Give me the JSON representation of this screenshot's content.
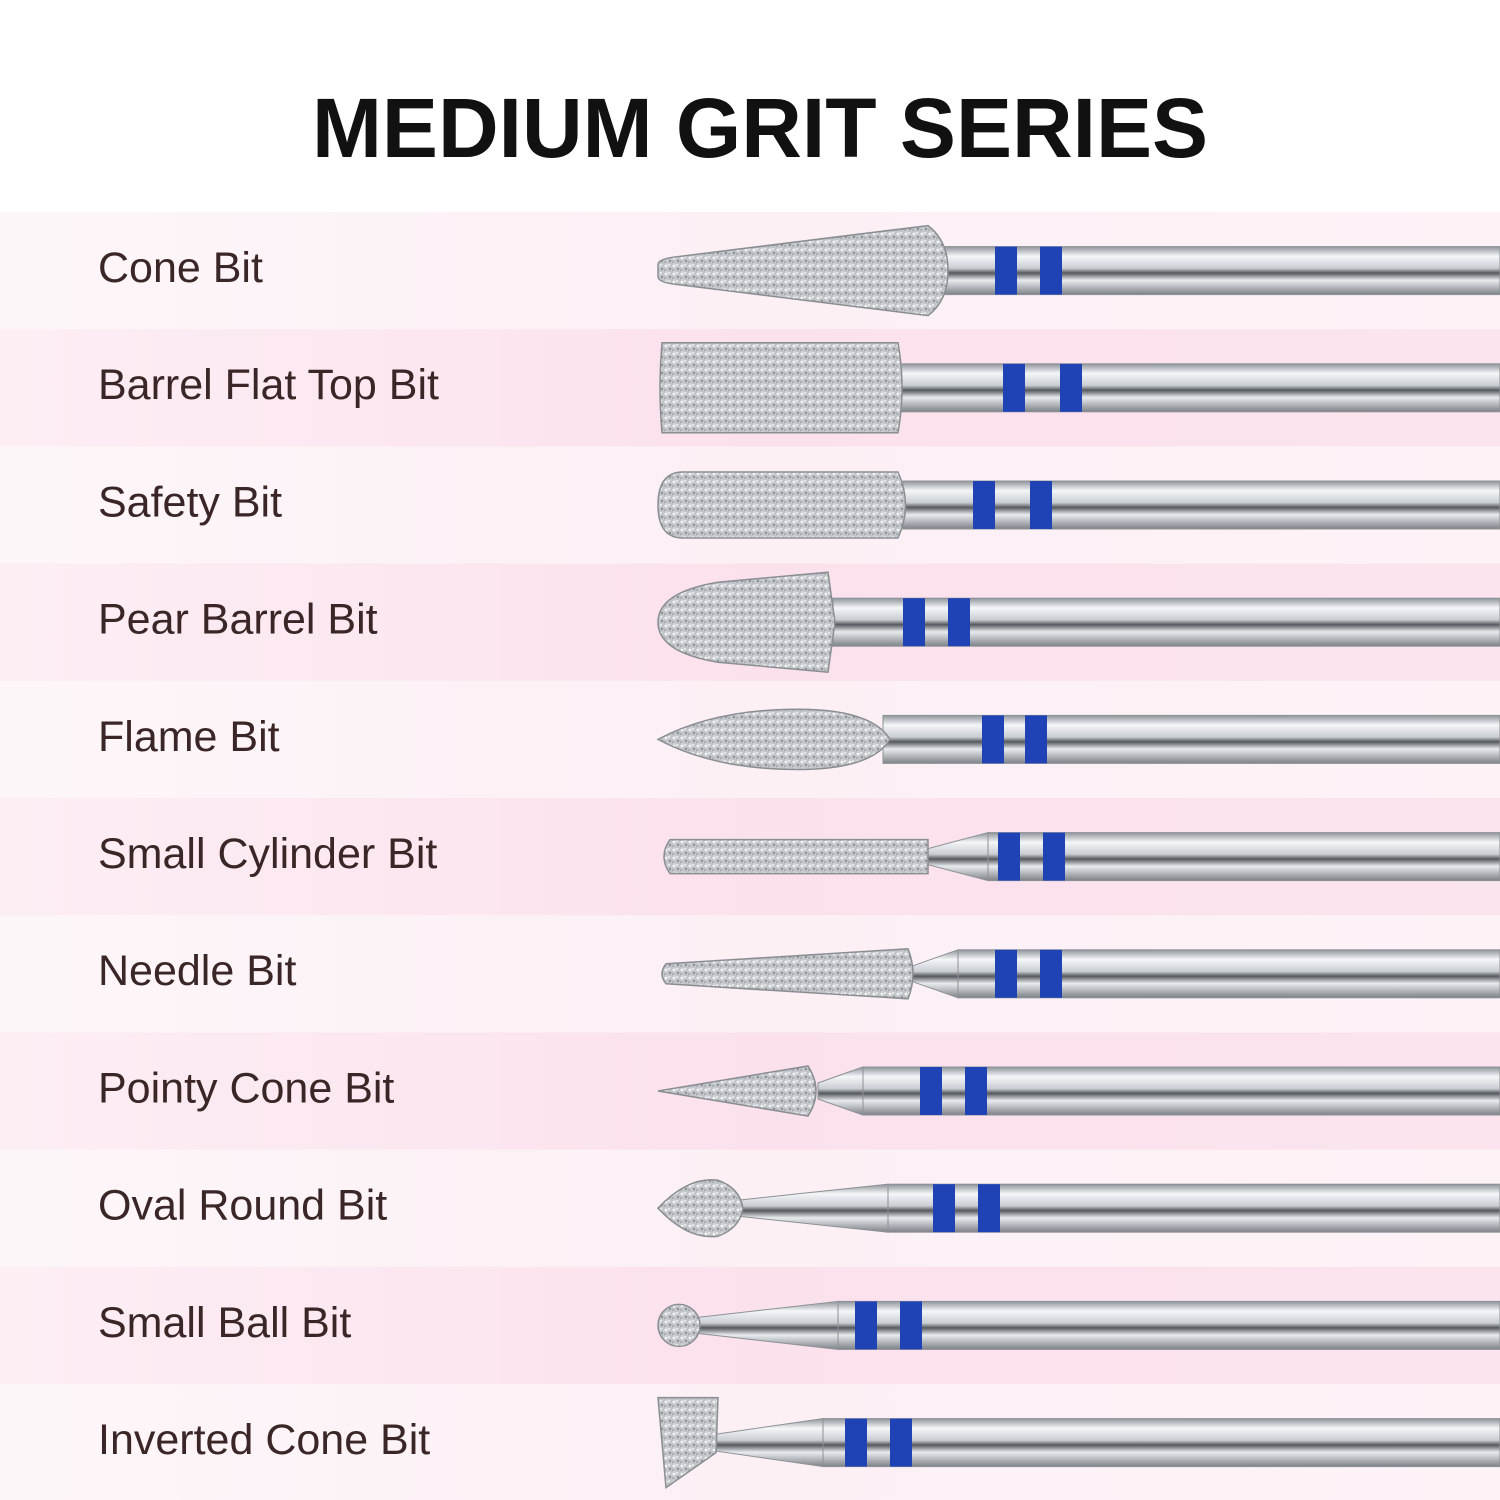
{
  "title": "MEDIUM GRIT SERIES",
  "items": [
    "Cone Bit",
    "Barrel Flat Top Bit",
    "Safety Bit",
    "Pear Barrel Bit",
    "Flame Bit",
    "Small Cylinder Bit",
    "Needle Bit",
    "Pointy Cone Bit",
    "Oval Round Bit",
    "Small Ball Bit",
    "Inverted Cone Bit"
  ]
}
